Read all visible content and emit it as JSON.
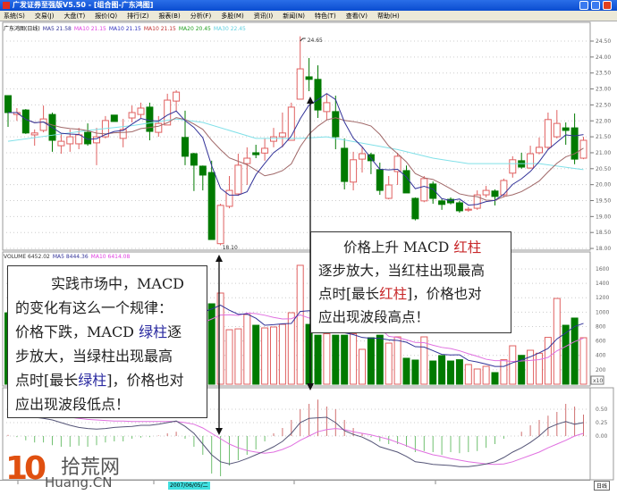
{
  "window": {
    "title": "广发证券至强版V5.50 - [组合图-广东鸿图]"
  },
  "menu": [
    "系统(S)",
    "交易(J)",
    "大盘(T)",
    "报价(Q)",
    "排行(Z)",
    "报表(B)",
    "分析(F)",
    "多股(M)",
    "资讯(I)",
    "新闻(N)",
    "特色(T)",
    "查看(V)",
    "帮助(H)"
  ],
  "legend": {
    "stock": "广东鸿图(日线)",
    "items": [
      {
        "text": "MA5 21.58",
        "color": "#333399"
      },
      {
        "text": "MA10 21.15",
        "color": "#e040e0"
      },
      {
        "text": "MA10 21.15",
        "color": "#3030c0"
      },
      {
        "text": "MA10 21.15",
        "color": "#c03030"
      },
      {
        "text": "MA20 20.45",
        "color": "#20a020"
      },
      {
        "text": "MA30 22.45",
        "color": "#60d0e0"
      }
    ]
  },
  "volume_legend": [
    {
      "text": "VOLUME 6452.02",
      "color": "#333"
    },
    {
      "text": "MA5 8444.36",
      "color": "#333399"
    },
    {
      "text": "MA10 6414.08",
      "color": "#e040e0"
    }
  ],
  "notes": {
    "left": {
      "l1": "实践市场中，MACD",
      "l2": "的变化有这么一个规律：",
      "l3a": "价格下跌，MACD ",
      "l3b": "绿柱",
      "l3c": "逐",
      "l4": "步放大，当绿柱出现最高",
      "l5a": "点时[最长",
      "l5b": "绿柱",
      "l5c": "]，价格也对",
      "l6": "应出现波段低点！"
    },
    "right": {
      "l1a": "价格上升 MACD ",
      "l1b": "红柱",
      "l2": "逐步放大，当红柱出现最高",
      "l3a": "点时[最长",
      "l3b": "红柱",
      "l3c": "]，价格也对",
      "l4": "应出现波段高点！"
    }
  },
  "date_label": "2007/06/05/二",
  "period_label": "日线",
  "watermark": {
    "digits": "10",
    "cn": "拾荒网",
    "en": "Huang.CN"
  },
  "colors": {
    "up": "#e06060",
    "down": "#007a00",
    "ma5": "#333399",
    "ma10": "#a06868",
    "ma30": "#80e0e8",
    "dif": "#555577",
    "dea": "#e070e0"
  },
  "chart_data": [
    {
      "type": "candlestick",
      "price_ticks": [
        "24.50",
        "24.00",
        "23.50",
        "23.00",
        "22.50",
        "22.00",
        "21.50",
        "21.00",
        "20.50",
        "20.00",
        "19.50",
        "19.00",
        "18.50",
        "18.00"
      ],
      "ylim": [
        18.0,
        24.5
      ],
      "annotations": {
        "high": "24.65",
        "low": "18.10"
      },
      "ohlc": [
        [
          22.79,
          22.79,
          21.81,
          22.26
        ],
        [
          22.2,
          22.4,
          22.0,
          22.26
        ],
        [
          22.34,
          22.37,
          21.59,
          21.62
        ],
        [
          21.56,
          21.73,
          21.22,
          21.62
        ],
        [
          21.7,
          22.48,
          21.64,
          22.06
        ],
        [
          22.2,
          22.26,
          21.03,
          21.39
        ],
        [
          21.22,
          21.59,
          20.97,
          21.36
        ],
        [
          21.28,
          21.73,
          21.03,
          21.5
        ],
        [
          21.28,
          21.78,
          21.11,
          21.56
        ],
        [
          21.64,
          21.92,
          21.22,
          21.28
        ],
        [
          21.31,
          21.78,
          20.61,
          21.5
        ],
        [
          21.5,
          22.15,
          21.45,
          22.01
        ],
        [
          22.18,
          22.18,
          21.98,
          21.98
        ],
        [
          21.45,
          22.06,
          21.17,
          21.73
        ],
        [
          22.09,
          22.48,
          21.95,
          22.26
        ],
        [
          22.2,
          22.57,
          22.09,
          22.4
        ],
        [
          22.43,
          22.57,
          21.39,
          21.67
        ],
        [
          21.64,
          22.15,
          21.5,
          21.92
        ],
        [
          21.87,
          22.85,
          21.87,
          22.65
        ],
        [
          22.62,
          22.96,
          22.29,
          22.9
        ],
        [
          21.48,
          22.32,
          20.61,
          20.89
        ],
        [
          20.97,
          21.0,
          19.8,
          20.61
        ],
        [
          20.58,
          20.6,
          19.82,
          20.3
        ],
        [
          20.38,
          20.75,
          18.28,
          18.28
        ],
        [
          18.15,
          19.4,
          18.1,
          19.35
        ],
        [
          19.32,
          20.27,
          19.26,
          19.82
        ],
        [
          19.71,
          20.97,
          19.65,
          20.61
        ],
        [
          20.66,
          21.17,
          19.99,
          20.83
        ],
        [
          21.0,
          21.25,
          20.83,
          20.94
        ],
        [
          20.99,
          21.45,
          20.75,
          21.14
        ],
        [
          21.36,
          21.78,
          21.17,
          21.5
        ],
        [
          21.5,
          22.26,
          21.17,
          21.62
        ],
        [
          21.39,
          22.57,
          21.39,
          22.43
        ],
        [
          22.68,
          24.65,
          22.68,
          23.63
        ],
        [
          23.38,
          23.97,
          22.93,
          23.3
        ],
        [
          23.3,
          23.74,
          22.09,
          22.34
        ],
        [
          22.29,
          22.85,
          22.01,
          22.57
        ],
        [
          22.29,
          22.79,
          21.11,
          21.5
        ],
        [
          21.14,
          21.45,
          19.85,
          20.1
        ],
        [
          20.08,
          21.03,
          19.82,
          20.78
        ],
        [
          20.8,
          21.17,
          20.38,
          20.97
        ],
        [
          20.94,
          21.0,
          20.33,
          20.75
        ],
        [
          20.47,
          20.69,
          19.68,
          19.82
        ],
        [
          19.57,
          20.27,
          19.54,
          19.99
        ],
        [
          20.41,
          21.0,
          19.99,
          20.89
        ],
        [
          20.44,
          20.6,
          19.74,
          19.74
        ],
        [
          19.57,
          19.6,
          18.88,
          18.93
        ],
        [
          19.49,
          20.27,
          19.45,
          20.19
        ],
        [
          20.02,
          20.1,
          19.4,
          19.57
        ],
        [
          19.49,
          19.55,
          19.21,
          19.38
        ],
        [
          19.54,
          19.6,
          19.38,
          19.43
        ],
        [
          19.43,
          19.5,
          19.12,
          19.18
        ],
        [
          19.2,
          19.3,
          19.15,
          19.23
        ],
        [
          19.26,
          19.82,
          19.21,
          19.68
        ],
        [
          19.68,
          19.96,
          19.6,
          19.82
        ],
        [
          19.8,
          19.85,
          19.35,
          19.63
        ],
        [
          19.68,
          20.19,
          19.6,
          20.13
        ],
        [
          20.36,
          20.89,
          20.22,
          20.78
        ],
        [
          20.75,
          21.0,
          20.5,
          20.55
        ],
        [
          20.52,
          21.22,
          20.5,
          20.97
        ],
        [
          21.0,
          21.48,
          20.95,
          21.17
        ],
        [
          21.17,
          22.26,
          21.11,
          22.04
        ],
        [
          21.5,
          22.34,
          21.45,
          21.92
        ],
        [
          21.78,
          21.95,
          21.25,
          21.7
        ],
        [
          21.78,
          22.23,
          20.64,
          20.8
        ],
        [
          20.83,
          21.5,
          20.8,
          21.39
        ]
      ],
      "ma30_points": [
        [
          1,
          21.36
        ],
        [
          6,
          21.55
        ],
        [
          10,
          21.7
        ],
        [
          15,
          21.85
        ],
        [
          20,
          22.06
        ],
        [
          23,
          21.95
        ],
        [
          29,
          21.45
        ],
        [
          34,
          21.45
        ],
        [
          37,
          21.5
        ],
        [
          45,
          21.1
        ],
        [
          49,
          20.83
        ],
        [
          53,
          20.66
        ],
        [
          61,
          20.66
        ],
        [
          66,
          20.47
        ]
      ]
    },
    {
      "type": "bar",
      "name": "VOLUME",
      "unit_label": "x10",
      "ticks": [
        "1600",
        "1400",
        "1200",
        "1000",
        "800",
        "600",
        "400",
        "200"
      ],
      "ylim": [
        0,
        1700
      ],
      "values": [
        990,
        600,
        850,
        620,
        700,
        900,
        600,
        580,
        560,
        650,
        700,
        780,
        620,
        640,
        700,
        720,
        850,
        650,
        900,
        1000,
        1100,
        1050,
        950,
        1116,
        1265,
        756,
        768,
        967,
        818,
        781,
        794,
        831,
        992,
        1650,
        830,
        680,
        700,
        680,
        680,
        700,
        484,
        645,
        680,
        570,
        657,
        360,
        335,
        657,
        322,
        397,
        322,
        340,
        273,
        211,
        248,
        161,
        340,
        533,
        400,
        471,
        430,
        650,
        1190,
        818,
        918,
        645
      ]
    },
    {
      "type": "macd",
      "ticks": [
        "0.50",
        "0.25",
        "0.00"
      ],
      "hist": [
        0.02,
        -0.02,
        -0.08,
        -0.12,
        -0.12,
        -0.17,
        -0.2,
        -0.2,
        -0.18,
        -0.2,
        -0.17,
        -0.12,
        -0.1,
        -0.1,
        -0.05,
        -0.03,
        -0.02,
        0.01,
        0.05,
        0.08,
        -0.05,
        -0.2,
        -0.35,
        -0.7,
        -0.75,
        -0.55,
        -0.45,
        -0.35,
        -0.25,
        -0.1,
        0.05,
        0.15,
        0.3,
        0.5,
        0.6,
        0.68,
        0.55,
        0.5,
        0.3,
        0.15,
        0.05,
        -0.02,
        -0.1,
        -0.15,
        -0.15,
        -0.2,
        -0.3,
        -0.28,
        -0.3,
        -0.35,
        -0.3,
        -0.32,
        -0.3,
        -0.28,
        -0.22,
        -0.15,
        -0.05,
        0.0,
        0.08,
        0.2,
        0.3,
        0.38,
        0.45,
        0.6,
        0.55,
        0.4
      ],
      "dif": [
        0.45,
        0.42,
        0.38,
        0.35,
        0.33,
        0.3,
        0.25,
        0.2,
        0.16,
        0.14,
        0.13,
        0.14,
        0.16,
        0.17,
        0.18,
        0.2,
        0.2,
        0.22,
        0.25,
        0.28,
        0.18,
        0.05,
        -0.15,
        -0.35,
        -0.48,
        -0.52,
        -0.48,
        -0.42,
        -0.35,
        -0.28,
        -0.2,
        -0.1,
        0.05,
        0.25,
        0.33,
        0.34,
        0.35,
        0.25,
        0.1,
        0.03,
        -0.02,
        -0.1,
        -0.2,
        -0.25,
        -0.3,
        -0.38,
        -0.48,
        -0.5,
        -0.53,
        -0.54,
        -0.55,
        -0.57,
        -0.57,
        -0.55,
        -0.52,
        -0.48,
        -0.4,
        -0.3,
        -0.22,
        -0.12,
        0.0,
        0.15,
        0.22,
        0.27,
        0.22,
        0.25
      ],
      "dea": [
        0.45,
        0.44,
        0.43,
        0.42,
        0.41,
        0.39,
        0.37,
        0.35,
        0.33,
        0.31,
        0.3,
        0.29,
        0.28,
        0.28,
        0.27,
        0.27,
        0.27,
        0.27,
        0.27,
        0.27,
        0.25,
        0.22,
        0.15,
        0.05,
        -0.05,
        -0.15,
        -0.22,
        -0.27,
        -0.3,
        -0.32,
        -0.3,
        -0.25,
        -0.18,
        -0.08,
        0.0,
        0.08,
        0.12,
        0.14,
        0.12,
        0.08,
        0.05,
        0.02,
        -0.02,
        -0.06,
        -0.12,
        -0.18,
        -0.25,
        -0.3,
        -0.35,
        -0.38,
        -0.42,
        -0.45,
        -0.48,
        -0.5,
        -0.52,
        -0.53,
        -0.52,
        -0.48,
        -0.42,
        -0.36,
        -0.3,
        -0.22,
        -0.15,
        -0.08,
        0.0,
        0.05
      ]
    }
  ]
}
